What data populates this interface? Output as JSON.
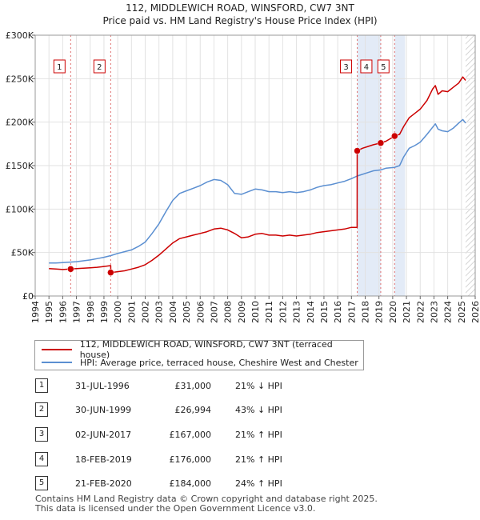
{
  "chart_data": {
    "type": "line",
    "title": "112, MIDDLEWICH ROAD, WINSFORD, CW7 3NT",
    "subtitle": "Price paid vs. HM Land Registry's House Price Index (HPI)",
    "xlabel": "",
    "ylabel": "",
    "xlim": [
      1994,
      2026
    ],
    "ylim": [
      0,
      300000
    ],
    "x_ticks": [
      "1994",
      "1995",
      "1996",
      "1997",
      "1998",
      "1999",
      "2000",
      "2001",
      "2002",
      "2003",
      "2004",
      "2005",
      "2006",
      "2007",
      "2008",
      "2009",
      "2010",
      "2011",
      "2012",
      "2013",
      "2014",
      "2015",
      "2016",
      "2017",
      "2018",
      "2019",
      "2020",
      "2021",
      "2022",
      "2023",
      "2024",
      "2025",
      "2026"
    ],
    "y_ticks": [
      {
        "value": 0,
        "label": "£0"
      },
      {
        "value": 50000,
        "label": "£50K"
      },
      {
        "value": 100000,
        "label": "£100K"
      },
      {
        "value": 150000,
        "label": "£150K"
      },
      {
        "value": 200000,
        "label": "£200K"
      },
      {
        "value": 250000,
        "label": "£250K"
      },
      {
        "value": 300000,
        "label": "£300K"
      }
    ],
    "grid": true,
    "series": [
      {
        "name": "112, MIDDLEWICH ROAD, WINSFORD, CW7 3NT (terraced house)",
        "color": "#cc0000",
        "points": [
          [
            1995.0,
            31500
          ],
          [
            1995.5,
            31000
          ],
          [
            1996.0,
            30500
          ],
          [
            1996.58,
            31000
          ],
          [
            1997.0,
            31500
          ],
          [
            1997.5,
            32000
          ],
          [
            1998.0,
            32500
          ],
          [
            1998.5,
            33000
          ],
          [
            1999.0,
            34000
          ],
          [
            1999.49,
            35000
          ],
          [
            1999.5,
            27000
          ],
          [
            2000.0,
            28000
          ],
          [
            2000.5,
            29000
          ],
          [
            2001.0,
            31000
          ],
          [
            2001.5,
            33000
          ],
          [
            2002.0,
            36000
          ],
          [
            2002.5,
            41000
          ],
          [
            2003.0,
            47000
          ],
          [
            2003.5,
            54000
          ],
          [
            2004.0,
            61000
          ],
          [
            2004.5,
            66000
          ],
          [
            2005.0,
            68000
          ],
          [
            2005.5,
            70000
          ],
          [
            2006.0,
            72000
          ],
          [
            2006.5,
            74000
          ],
          [
            2007.0,
            77000
          ],
          [
            2007.5,
            78000
          ],
          [
            2008.0,
            76000
          ],
          [
            2008.5,
            72000
          ],
          [
            2009.0,
            67000
          ],
          [
            2009.5,
            68000
          ],
          [
            2010.0,
            71000
          ],
          [
            2010.5,
            72000
          ],
          [
            2011.0,
            70000
          ],
          [
            2011.5,
            70000
          ],
          [
            2012.0,
            69000
          ],
          [
            2012.5,
            70000
          ],
          [
            2013.0,
            69000
          ],
          [
            2013.5,
            70000
          ],
          [
            2014.0,
            71000
          ],
          [
            2014.5,
            73000
          ],
          [
            2015.0,
            74000
          ],
          [
            2015.5,
            75000
          ],
          [
            2016.0,
            76000
          ],
          [
            2016.5,
            77000
          ],
          [
            2017.0,
            79000
          ],
          [
            2017.41,
            79000
          ],
          [
            2017.42,
            167000
          ],
          [
            2017.8,
            170000
          ],
          [
            2018.2,
            172000
          ],
          [
            2018.6,
            174000
          ],
          [
            2019.13,
            176000
          ],
          [
            2019.5,
            178000
          ],
          [
            2020.14,
            184000
          ],
          [
            2020.5,
            186000
          ],
          [
            2020.8,
            195000
          ],
          [
            2021.2,
            205000
          ],
          [
            2021.6,
            210000
          ],
          [
            2022.0,
            215000
          ],
          [
            2022.5,
            225000
          ],
          [
            2022.9,
            238000
          ],
          [
            2023.1,
            242000
          ],
          [
            2023.3,
            232000
          ],
          [
            2023.6,
            236000
          ],
          [
            2024.0,
            235000
          ],
          [
            2024.4,
            240000
          ],
          [
            2024.8,
            245000
          ],
          [
            2025.1,
            252000
          ],
          [
            2025.3,
            248000
          ]
        ]
      },
      {
        "name": "HPI: Average price, terraced house, Cheshire West and Chester",
        "color": "#5b8fd1",
        "points": [
          [
            1995.0,
            38000
          ],
          [
            1995.5,
            38000
          ],
          [
            1996.0,
            38500
          ],
          [
            1996.58,
            39000
          ],
          [
            1997.0,
            39500
          ],
          [
            1997.5,
            40500
          ],
          [
            1998.0,
            41500
          ],
          [
            1998.5,
            43000
          ],
          [
            1999.0,
            44500
          ],
          [
            1999.5,
            46500
          ],
          [
            2000.0,
            49000
          ],
          [
            2000.5,
            51000
          ],
          [
            2001.0,
            53000
          ],
          [
            2001.5,
            57000
          ],
          [
            2002.0,
            62000
          ],
          [
            2002.5,
            72000
          ],
          [
            2003.0,
            83000
          ],
          [
            2003.5,
            97000
          ],
          [
            2004.0,
            110000
          ],
          [
            2004.5,
            118000
          ],
          [
            2005.0,
            121000
          ],
          [
            2005.5,
            124000
          ],
          [
            2006.0,
            127000
          ],
          [
            2006.5,
            131000
          ],
          [
            2007.0,
            134000
          ],
          [
            2007.5,
            133000
          ],
          [
            2008.0,
            128000
          ],
          [
            2008.5,
            118000
          ],
          [
            2009.0,
            117000
          ],
          [
            2009.5,
            120000
          ],
          [
            2010.0,
            123000
          ],
          [
            2010.5,
            122000
          ],
          [
            2011.0,
            120000
          ],
          [
            2011.5,
            120000
          ],
          [
            2012.0,
            119000
          ],
          [
            2012.5,
            120000
          ],
          [
            2013.0,
            119000
          ],
          [
            2013.5,
            120000
          ],
          [
            2014.0,
            122000
          ],
          [
            2014.5,
            125000
          ],
          [
            2015.0,
            127000
          ],
          [
            2015.5,
            128000
          ],
          [
            2016.0,
            130000
          ],
          [
            2016.5,
            132000
          ],
          [
            2017.0,
            135000
          ],
          [
            2017.42,
            138000
          ],
          [
            2017.8,
            140000
          ],
          [
            2018.2,
            142000
          ],
          [
            2018.6,
            144000
          ],
          [
            2019.13,
            145000
          ],
          [
            2019.5,
            147000
          ],
          [
            2020.14,
            148000
          ],
          [
            2020.5,
            150000
          ],
          [
            2020.8,
            160000
          ],
          [
            2021.2,
            170000
          ],
          [
            2021.6,
            173000
          ],
          [
            2022.0,
            177000
          ],
          [
            2022.5,
            186000
          ],
          [
            2022.9,
            194000
          ],
          [
            2023.1,
            198000
          ],
          [
            2023.3,
            192000
          ],
          [
            2023.6,
            190000
          ],
          [
            2024.0,
            189000
          ],
          [
            2024.4,
            193000
          ],
          [
            2024.8,
            199000
          ],
          [
            2025.1,
            203000
          ],
          [
            2025.3,
            199000
          ]
        ]
      }
    ],
    "sales": [
      {
        "num": "1",
        "x": 1996.58,
        "price": 31000,
        "date": "31-JUL-1996",
        "price_label": "£31,000",
        "hpi": "21% ↓ HPI"
      },
      {
        "num": "2",
        "x": 1999.49,
        "price": 26994,
        "date": "30-JUN-1999",
        "price_label": "£26,994",
        "hpi": "43% ↓ HPI"
      },
      {
        "num": "3",
        "x": 2017.42,
        "price": 167000,
        "date": "02-JUN-2017",
        "price_label": "£167,000",
        "hpi": "21% ↑ HPI"
      },
      {
        "num": "4",
        "x": 2019.13,
        "price": 176000,
        "date": "18-FEB-2019",
        "price_label": "£176,000",
        "hpi": "21% ↑ HPI"
      },
      {
        "num": "5",
        "x": 2020.14,
        "price": 184000,
        "date": "21-FEB-2020",
        "price_label": "£184,000",
        "hpi": "24% ↑ HPI"
      }
    ],
    "shaded_ranges": [
      [
        2017.42,
        2019.13
      ],
      [
        2020.14,
        2020.9
      ]
    ],
    "hatched_from": 2025.3
  },
  "footer": {
    "line1": "Contains HM Land Registry data © Crown copyright and database right 2025.",
    "line2": "This data is licensed under the Open Government Licence v3.0."
  }
}
